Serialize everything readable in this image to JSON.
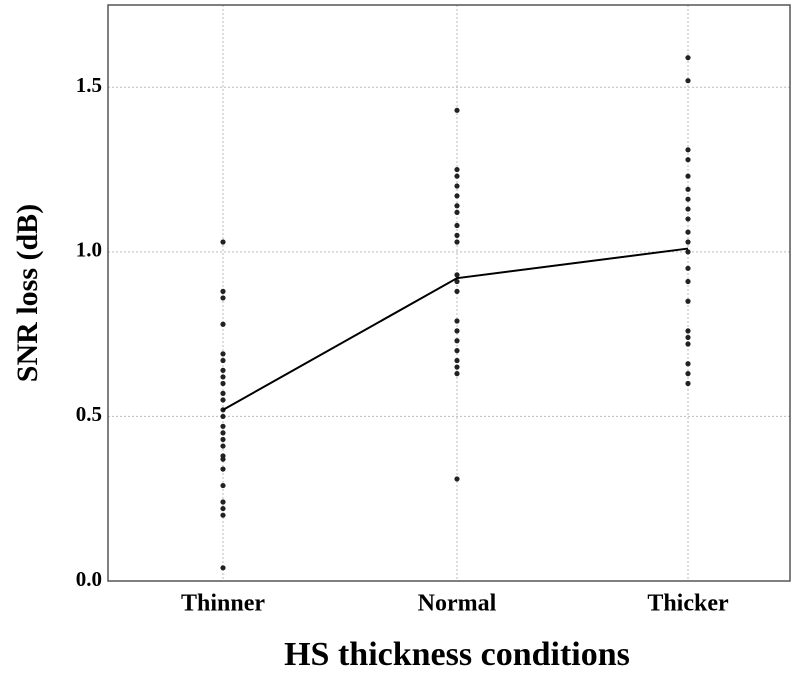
{
  "chart_data": {
    "type": "scatter",
    "x_label": "HS thickness conditions",
    "y_label": "SNR loss (dB)",
    "categories": [
      "Thinner",
      "Normal",
      "Thicker"
    ],
    "points": [
      [
        0.04,
        0.2,
        0.22,
        0.24,
        0.29,
        0.34,
        0.37,
        0.38,
        0.41,
        0.43,
        0.45,
        0.47,
        0.5,
        0.52,
        0.55,
        0.57,
        0.6,
        0.62,
        0.64,
        0.67,
        0.69,
        0.78,
        0.86,
        0.88,
        1.03
      ],
      [
        0.31,
        0.63,
        0.65,
        0.67,
        0.7,
        0.73,
        0.76,
        0.79,
        0.88,
        0.91,
        0.93,
        1.03,
        1.05,
        1.08,
        1.12,
        1.14,
        1.17,
        1.2,
        1.23,
        1.25,
        1.43
      ],
      [
        0.6,
        0.63,
        0.66,
        0.72,
        0.74,
        0.76,
        0.85,
        0.91,
        0.95,
        1.0,
        1.03,
        1.06,
        1.1,
        1.13,
        1.16,
        1.19,
        1.23,
        1.28,
        1.31,
        1.52,
        1.59
      ]
    ],
    "line_values": [
      0.52,
      0.92,
      1.01
    ],
    "point_color": "#222222",
    "line_color": "#000000",
    "ylim": [
      0,
      1.75
    ],
    "yticks": [
      {
        "value": 0,
        "label": "0.0"
      },
      {
        "value": 0.5,
        "label": "0.5"
      },
      {
        "value": 1,
        "label": "1.0"
      },
      {
        "value": 1.5,
        "label": "1.5"
      }
    ],
    "grid": true
  }
}
